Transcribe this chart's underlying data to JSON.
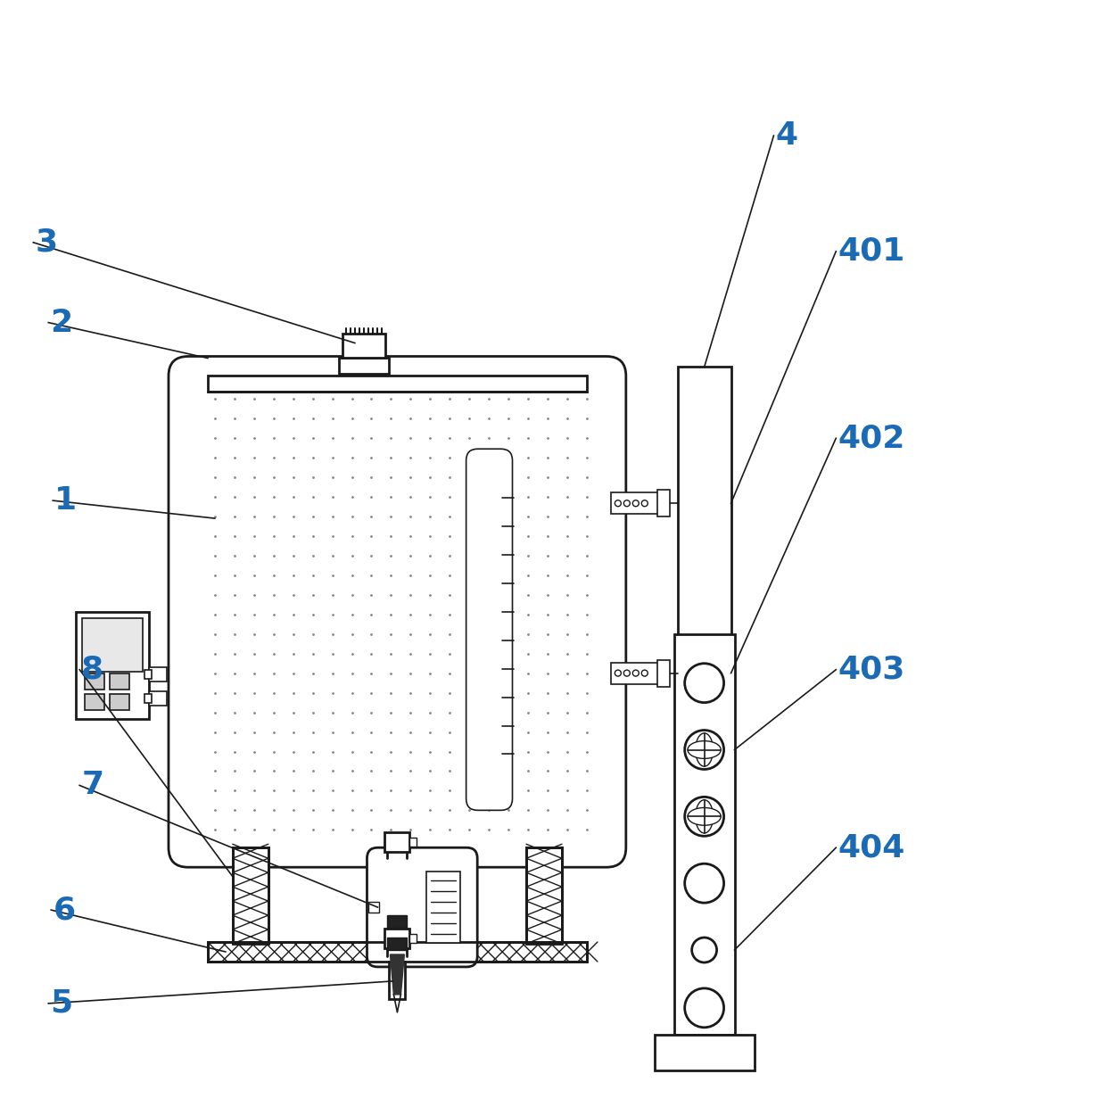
{
  "bg_color": "#ffffff",
  "line_color": "#1a1a1a",
  "label_color": "#1a6ab5",
  "label_fontsize": 26,
  "figsize": [
    12.49,
    12.41
  ],
  "dpi": 100
}
